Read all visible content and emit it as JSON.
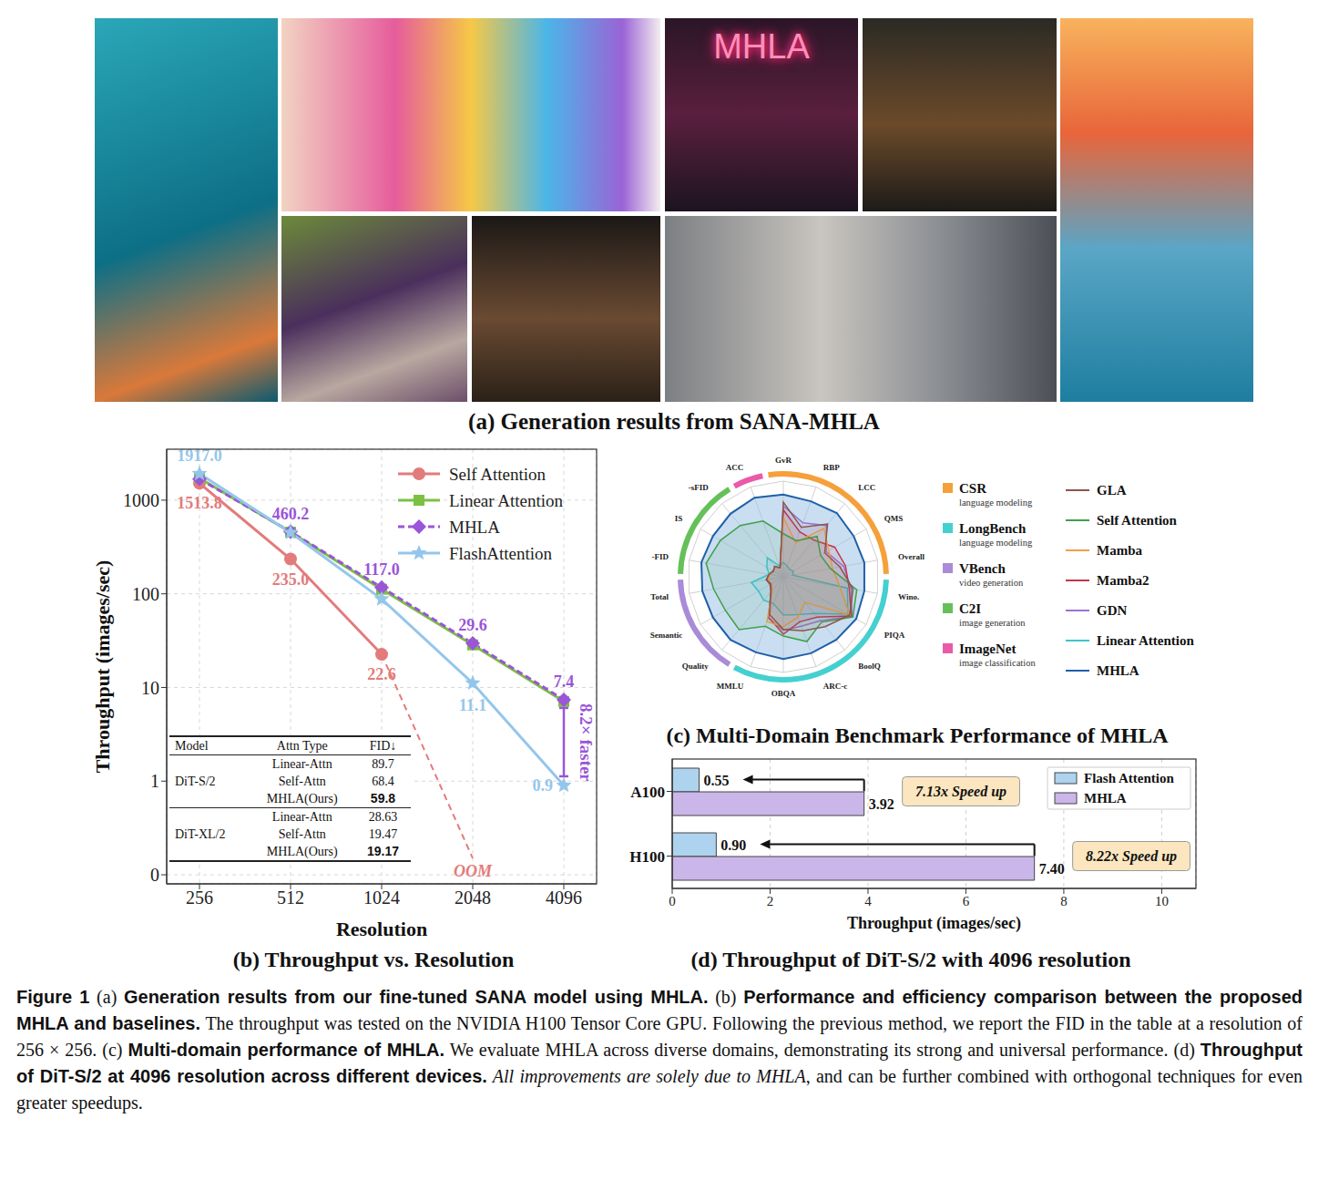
{
  "panel_a": {
    "caption": "(a) Generation results from SANA-MHLA",
    "image_text": "MHLA"
  },
  "chart_data": [
    {
      "type": "line",
      "title": "(b) Throughput vs. Resolution",
      "x_label": "Resolution",
      "y_label": "Throughput (images/sec)",
      "categories": [
        "256",
        "512",
        "1024",
        "2048",
        "4096"
      ],
      "log": "y",
      "grid": true,
      "legend": "upper right",
      "data_labels": true,
      "ylim": [
        0.08,
        3500
      ],
      "yticks": [
        1000,
        100,
        10,
        1,
        {
          "value": 0.1,
          "label": "0"
        }
      ],
      "series": [
        {
          "name": "Self Attention",
          "color": "#e37b7b",
          "marker": "circle",
          "line_style": "solid",
          "values": [
            1513.8,
            235.0,
            22.6,
            null,
            null
          ],
          "value_labels": [
            "1513.8",
            "235.0",
            "22.6",
            null,
            null
          ]
        },
        {
          "name": "Linear Attention",
          "color": "#7cc142",
          "marker": "square",
          "line_style": "solid",
          "values": [
            1720,
            455,
            112,
            28.5,
            7.1
          ]
        },
        {
          "name": "MHLA",
          "color": "#9a55d8",
          "marker": "diamond",
          "line_style": "dashed",
          "values": [
            1680,
            460.2,
            117.0,
            29.6,
            7.4
          ],
          "value_labels": [
            null,
            "460.2",
            "117.0",
            "29.6",
            "7.4"
          ]
        },
        {
          "name": "FlashAttention",
          "color": "#94c6ec",
          "marker": "star",
          "line_style": "solid",
          "values": [
            1917.0,
            450,
            88,
            11.1,
            0.9
          ],
          "value_labels": [
            "1917.0",
            null,
            null,
            "11.1",
            "0.9"
          ]
        }
      ],
      "annotations": [
        {
          "text": "8.2× faster",
          "x": "4096",
          "between": [
            "MHLA",
            "FlashAttention"
          ]
        },
        {
          "text": "OOM",
          "series": "Self Attention",
          "x": "2048",
          "y": 0.15,
          "from": {
            "x": "1024",
            "y": 22.6
          }
        }
      ],
      "table": {
        "header": [
          "Model",
          "Attn Type",
          "FID↓"
        ],
        "groups": [
          {
            "model": "DiT-S/2",
            "rows": [
              {
                "attn": "Linear-Attn",
                "fid": 89.7
              },
              {
                "attn": "Self-Attn",
                "fid": 68.4
              },
              {
                "attn": "MHLA(Ours)",
                "fid": 59.8,
                "best": true
              }
            ]
          },
          {
            "model": "DiT-XL/2",
            "rows": [
              {
                "attn": "Linear-Attn",
                "fid": 28.63
              },
              {
                "attn": "Self-Attn",
                "fid": 19.47
              },
              {
                "attn": "MHLA(Ours)",
                "fid": 19.17,
                "best": true
              }
            ]
          }
        ]
      }
    },
    {
      "type": "radar",
      "title": "(c) Multi-Domain Benchmark Performance of MHLA",
      "categories": [
        "GvR",
        "RBP",
        "LCC",
        "QMS",
        "Overall",
        "Wino.",
        "PIQA",
        "BoolQ",
        "ARC-c",
        "OBQA",
        "MMLU",
        "Quality",
        "Semantic",
        "Total",
        "-FID",
        "IS",
        "-sFID",
        "ACC"
      ],
      "ylim": [
        0,
        1
      ],
      "tick_labels": "x",
      "grid": true,
      "legend": "right",
      "domains": [
        {
          "name": "CSR",
          "subtitle": "language modeling",
          "color": "#f5a03a",
          "axes": [
            "GvR",
            "RBP",
            "LCC",
            "QMS",
            "Overall"
          ]
        },
        {
          "name": "LongBench",
          "subtitle": "language modeling",
          "color": "#45d0d0",
          "axes": [
            "Wino.",
            "PIQA",
            "BoolQ",
            "ARC-c",
            "OBQA",
            "MMLU"
          ]
        },
        {
          "name": "VBench",
          "subtitle": "video generation",
          "color": "#a98bd8",
          "axes": [
            "Quality",
            "Semantic",
            "Total"
          ]
        },
        {
          "name": "C2I",
          "subtitle": "image generation",
          "color": "#66c05a",
          "axes": [
            "-FID",
            "IS",
            "-sFID"
          ]
        },
        {
          "name": "ImageNet",
          "subtitle": "image classification",
          "color": "#ea5aa8",
          "axes": [
            "ACC"
          ]
        }
      ],
      "series": [
        {
          "name": "GLA",
          "color": "#8c564b",
          "values": [
            0.78,
            0.55,
            0.72,
            0.5,
            0.6,
            0.74,
            0.8,
            0.68,
            0.6,
            0.55,
            0.42,
            0.2,
            0.15,
            0.18,
            0.15,
            0.12,
            0.14,
            0.1
          ]
        },
        {
          "name": "Self Attention",
          "color": "#3fa04a",
          "values": [
            0.45,
            0.4,
            0.55,
            0.45,
            0.5,
            0.78,
            0.84,
            0.62,
            0.72,
            0.62,
            0.55,
            0.72,
            0.7,
            0.74,
            0.82,
            0.76,
            0.7,
            0.62
          ]
        },
        {
          "name": "Mamba",
          "color": "#f0a048",
          "values": [
            0.62,
            0.38,
            0.66,
            0.55,
            0.52,
            0.6,
            0.8,
            0.35,
            0.45,
            0.52,
            0.5,
            0.18,
            0.15,
            0.16,
            0.15,
            0.12,
            0.14,
            0.1
          ]
        },
        {
          "name": "Mamba2",
          "color": "#c2364e",
          "values": [
            0.7,
            0.5,
            0.5,
            0.62,
            0.66,
            0.7,
            0.82,
            0.55,
            0.5,
            0.6,
            0.45,
            0.2,
            0.16,
            0.18,
            0.15,
            0.12,
            0.14,
            0.1
          ]
        },
        {
          "name": "GDN",
          "color": "#9b72cf",
          "values": [
            0.74,
            0.6,
            0.7,
            0.52,
            0.64,
            0.72,
            0.83,
            0.6,
            0.55,
            0.56,
            0.46,
            0.2,
            0.16,
            0.18,
            0.15,
            0.12,
            0.14,
            0.1
          ]
        },
        {
          "name": "Linear Attention",
          "color": "#3cc4cf",
          "values": [
            0.15,
            0.12,
            0.1,
            0.12,
            0.1,
            0.68,
            0.78,
            0.5,
            0.42,
            0.4,
            0.3,
            0.32,
            0.3,
            0.34,
            0.15,
            0.2,
            0.26,
            0.12
          ]
        },
        {
          "name": "MHLA",
          "color": "#1f5fa8",
          "values": [
            0.86,
            0.84,
            0.87,
            0.85,
            0.86,
            0.86,
            0.88,
            0.86,
            0.85,
            0.86,
            0.84,
            0.86,
            0.85,
            0.86,
            0.87,
            0.85,
            0.86,
            0.88
          ]
        }
      ]
    },
    {
      "type": "bar",
      "orientation": "horizontal",
      "title": "(d) Throughput of DiT-S/2 with 4096 resolution",
      "x_label": "Throughput (images/sec)",
      "categories": [
        "A100",
        "H100"
      ],
      "xlim": [
        0,
        10.7
      ],
      "xticks": [
        0,
        2,
        4,
        6,
        8,
        10
      ],
      "grid": true,
      "legend": "upper right",
      "data_labels": true,
      "series": [
        {
          "name": "Flash Attention",
          "color": "#aed3ef",
          "values": [
            0.55,
            0.9
          ],
          "value_labels": [
            "0.55",
            "0.90"
          ]
        },
        {
          "name": "MHLA",
          "color": "#cbb6ea",
          "values": [
            3.92,
            7.4
          ],
          "value_labels": [
            "3.92",
            "7.40"
          ]
        }
      ],
      "annotations": [
        {
          "category": "A100",
          "text": "7.13x Speed up"
        },
        {
          "category": "H100",
          "text": "8.22x Speed up"
        }
      ]
    }
  ],
  "figure_caption": [
    {
      "text": "Figure 1",
      "style": "bold"
    },
    {
      "text": " (a) ",
      "style": "normal"
    },
    {
      "text": "Generation results from our fine-tuned SANA model using MHLA.",
      "style": "bold"
    },
    {
      "text": " (b) ",
      "style": "normal"
    },
    {
      "text": "Performance and efficiency comparison between the proposed MHLA and baselines.",
      "style": "bold"
    },
    {
      "text": " The throughput was tested on the NVIDIA H100 Tensor Core GPU. Following the previous method, we report the FID in the table at a resolution of 256 × 256. (c) ",
      "style": "normal"
    },
    {
      "text": "Multi-domain performance of MHLA.",
      "style": "bold"
    },
    {
      "text": " We evaluate MHLA across diverse domains, demonstrating its strong and universal performance. (d) ",
      "style": "normal"
    },
    {
      "text": "Throughput of DiT-S/2 at 4096 resolution across different devices.",
      "style": "bold"
    },
    {
      "text": " All improvements are solely due to MHLA",
      "style": "italic"
    },
    {
      "text": ", and can be further combined with orthogonal techniques for even greater speedups.",
      "style": "normal"
    }
  ]
}
